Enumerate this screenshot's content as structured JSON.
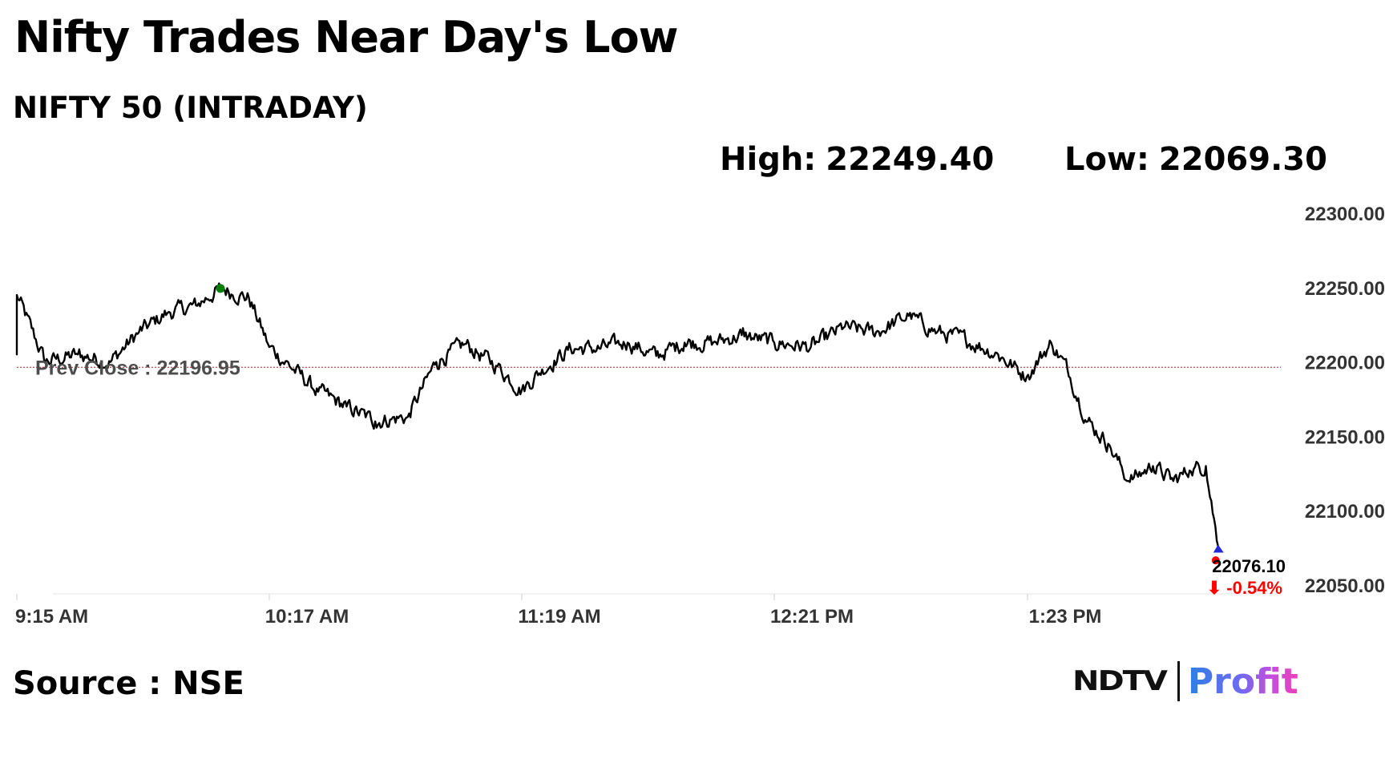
{
  "header": {
    "title": "Nifty Trades Near Day's Low",
    "subtitle": "NIFTY 50 (INTRADAY)",
    "high_label": "High:",
    "high_value": "22249.40",
    "low_label": "Low:",
    "low_value": "22069.30"
  },
  "chart_data": {
    "type": "line",
    "title": "NIFTY 50 (INTRADAY)",
    "xlabel": "",
    "ylabel": "",
    "x_ticks": [
      "9:15 AM",
      "10:17 AM",
      "11:19 AM",
      "12:21 PM",
      "1:23 PM"
    ],
    "y_ticks": [
      "22300.00",
      "22250.00",
      "22200.00",
      "22150.00",
      "22100.00",
      "22050.00"
    ],
    "ylim": [
      22050,
      22300
    ],
    "grid": false,
    "prev_close_label": "Prev Close : 22196.95",
    "prev_close": 22196.95,
    "last_value_label": "22076.10",
    "change_label": "⬇ -0.54%",
    "line_color": "#000000",
    "prev_close_color": "#b22222",
    "high_marker_color": "#008000",
    "last_marker_color": "#ff0000",
    "change_color": "#ff0000",
    "series": [
      {
        "x": [
          "9:15 AM",
          "9:22 AM",
          "9:30 AM",
          "9:38 AM",
          "9:45 AM",
          "9:52 AM",
          "9:59 AM",
          "10:05 AM",
          "10:12 AM",
          "10:17 AM",
          "10:23 AM",
          "10:29 AM",
          "10:36 AM",
          "10:43 AM",
          "10:51 AM",
          "10:58 AM",
          "11:05 AM",
          "11:13 AM",
          "11:19 AM",
          "11:24 AM",
          "11:31 AM",
          "11:38 AM",
          "11:45 AM",
          "11:52 AM",
          "11:59 AM",
          "12:06 PM",
          "12:13 PM",
          "12:21 PM",
          "12:30 PM",
          "12:38 PM",
          "12:46 PM",
          "12:54 PM",
          "1:01 PM",
          "1:08 PM",
          "1:16 PM",
          "1:23 PM",
          "1:29 PM",
          "1:33 PM",
          "1:38 PM",
          "1:43 PM",
          "1:48 PM",
          "1:54 PM",
          "1:59 PM",
          "2:03 PM",
          "2:07 PM",
          "2:10 PM"
        ],
        "values": [
          22245,
          22200,
          22205,
          22200,
          22220,
          22233,
          22238,
          22249.4,
          22243,
          22210,
          22195,
          22180,
          22170,
          22160,
          22163,
          22200,
          22212,
          22197,
          22181,
          22195,
          22209,
          22209,
          22213,
          22204,
          22213,
          22213,
          22218,
          22213,
          22210,
          22223,
          22220,
          22231,
          22220,
          22215,
          22205,
          22190,
          22213,
          22195,
          22160,
          22145,
          22120,
          22130,
          22120,
          22127,
          22130,
          22076.1
        ]
      }
    ],
    "high": 22249.4,
    "low": 22069.3
  },
  "footer": {
    "source": "Source : NSE",
    "logo_part1": "NDTV",
    "logo_part2": "Profit"
  }
}
